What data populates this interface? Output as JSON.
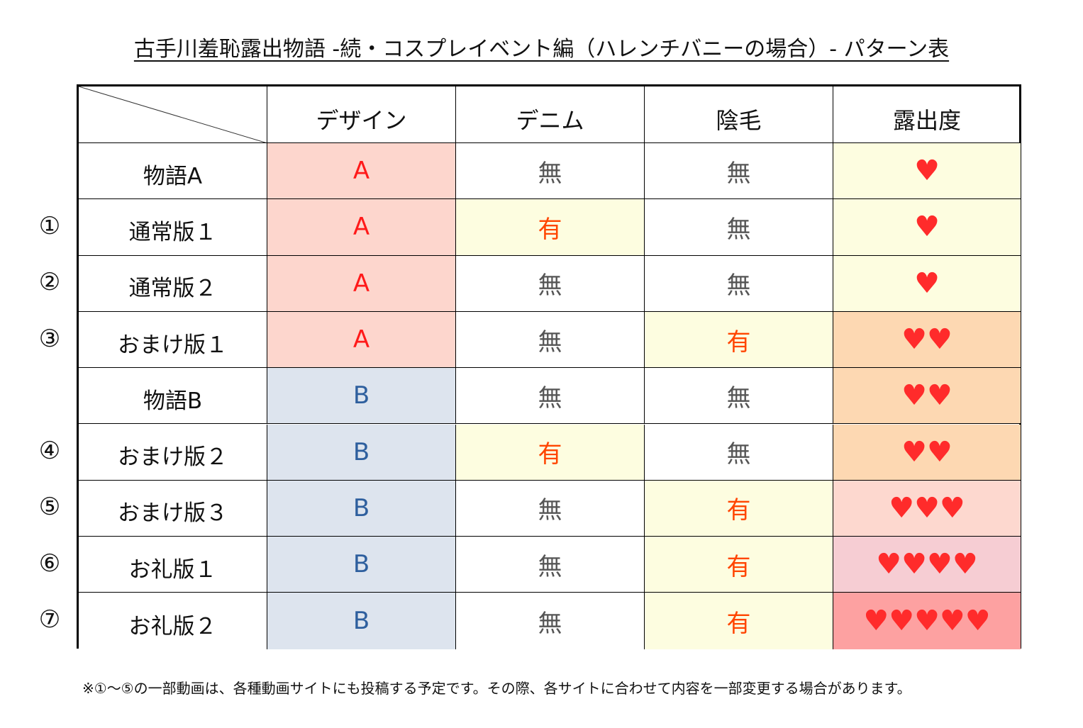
{
  "title": "古手川羞恥露出物語 -続・コスプレイベント編（ハレンチバニーの場合）- パターン表",
  "headers": [
    "",
    "デザイン",
    "デニム",
    "陰毛",
    "露出度"
  ],
  "colors": {
    "design_a_bg": "#fdd6cd",
    "design_b_bg": "#dde4ee",
    "yes_bg": "#fdfde0",
    "white": "#ffffff",
    "exposure_1_bg": "#fdfde0",
    "exposure_2_bg": "#fdd8b2",
    "exposure_3_bg": "#fdd8cf",
    "exposure_4_bg": "#f6cdd3",
    "exposure_5_bg": "#fda1a1"
  },
  "rows": [
    {
      "num": "",
      "label": "物語A",
      "design": "A",
      "denim": "無",
      "pubic": "無",
      "hearts": "♥",
      "level": 1
    },
    {
      "num": "①",
      "label": "通常版１",
      "design": "A",
      "denim": "有",
      "pubic": "無",
      "hearts": "♥",
      "level": 1
    },
    {
      "num": "②",
      "label": "通常版２",
      "design": "A",
      "denim": "無",
      "pubic": "無",
      "hearts": "♥",
      "level": 1
    },
    {
      "num": "③",
      "label": "おまけ版１",
      "design": "A",
      "denim": "無",
      "pubic": "有",
      "hearts": "♥♥",
      "level": 2
    },
    {
      "num": "",
      "label": "物語B",
      "design": "B",
      "denim": "無",
      "pubic": "無",
      "hearts": "♥♥",
      "level": 2
    },
    {
      "num": "④",
      "label": "おまけ版２",
      "design": "B",
      "denim": "有",
      "pubic": "無",
      "hearts": "♥♥",
      "level": 2
    },
    {
      "num": "⑤",
      "label": "おまけ版３",
      "design": "B",
      "denim": "無",
      "pubic": "有",
      "hearts": "♥♥♥",
      "level": 3
    },
    {
      "num": "⑥",
      "label": "お礼版１",
      "design": "B",
      "denim": "無",
      "pubic": "有",
      "hearts": "♥♥♥♥",
      "level": 4
    },
    {
      "num": "⑦",
      "label": "お礼版２",
      "design": "B",
      "denim": "無",
      "pubic": "有",
      "hearts": "♥♥♥♥♥",
      "level": 5
    }
  ],
  "note": "※①～⑤の一部動画は、各種動画サイトにも投稿する予定です。その際、各サイトに合わせて内容を一部変更する場合があります。"
}
